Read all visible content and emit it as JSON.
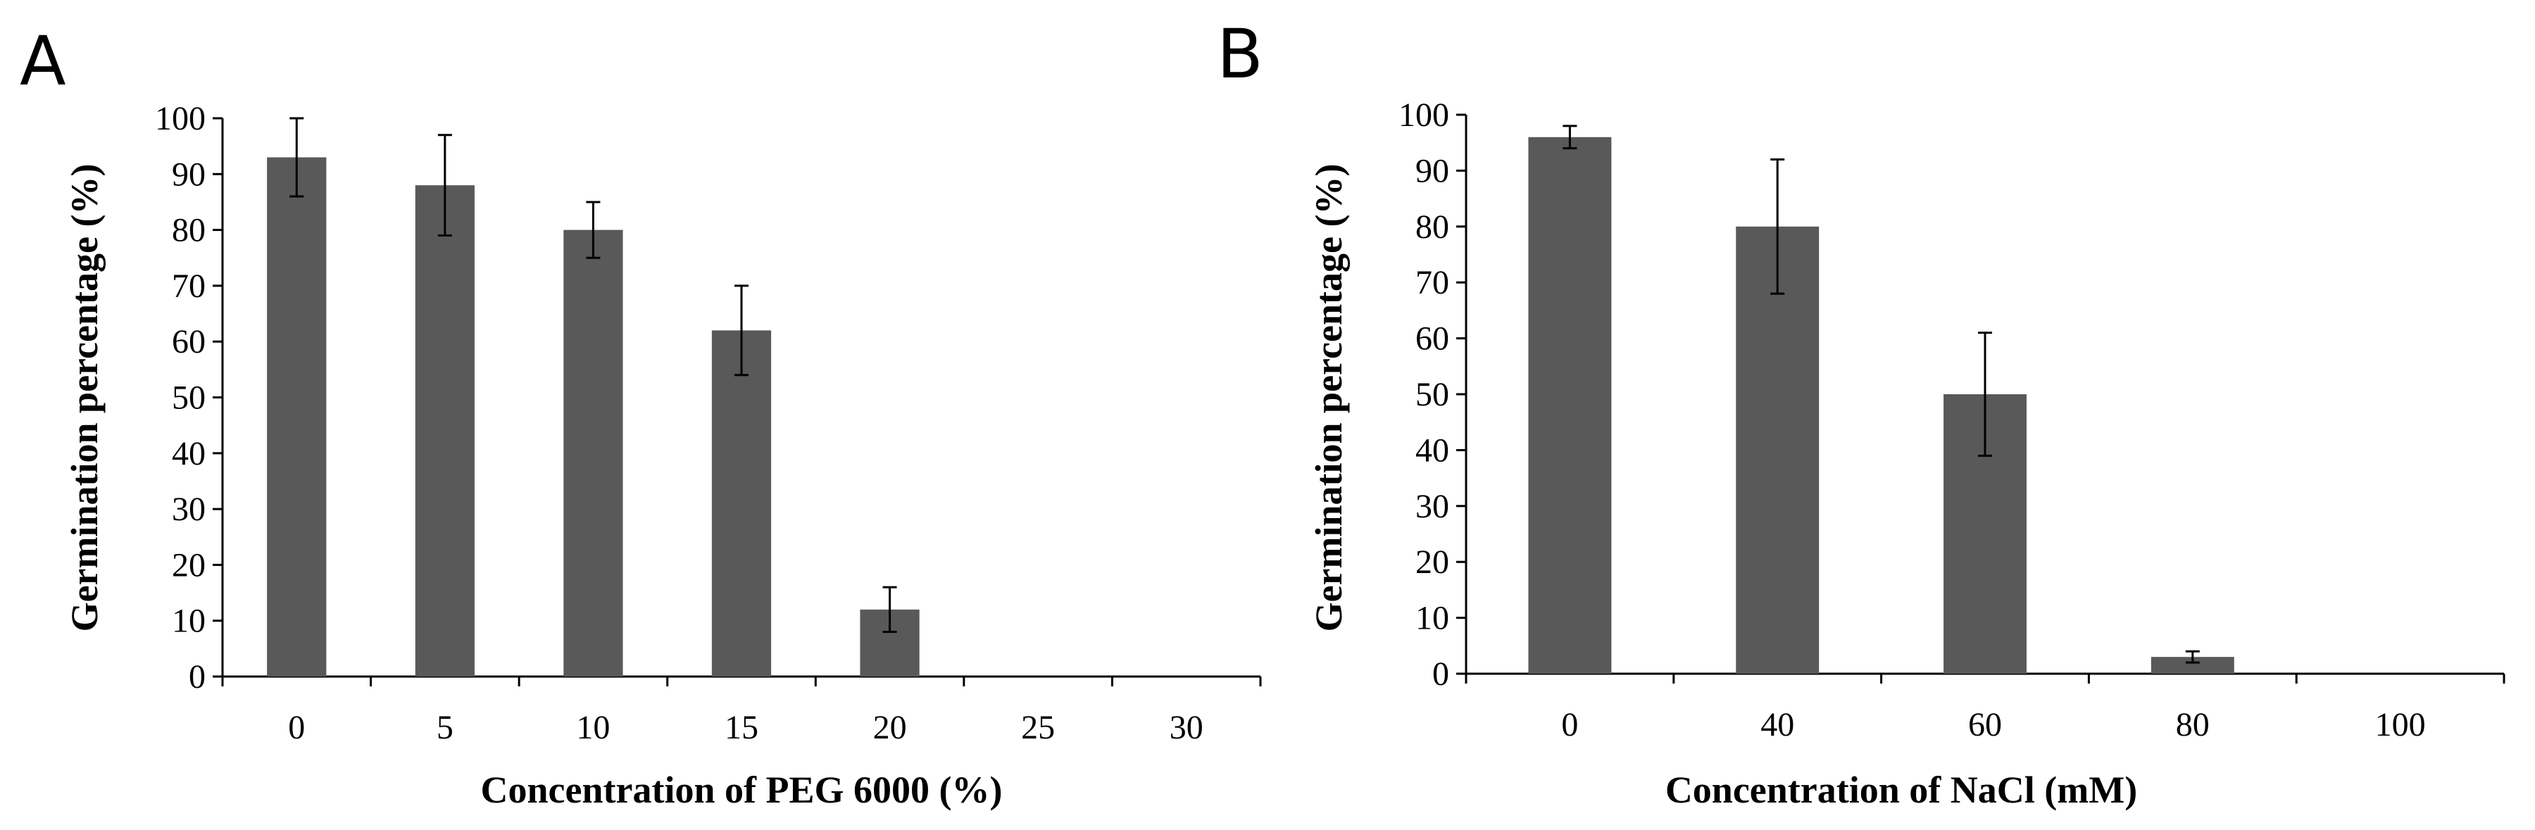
{
  "colors": {
    "bar": "#595959",
    "axis": "#000000",
    "background": "#ffffff"
  },
  "chart_data": [
    {
      "type": "bar",
      "panel": "A",
      "title": "",
      "xlabel": "Concentration of PEG 6000 (%)",
      "ylabel": "Germination percentage (%)",
      "categories": [
        "0",
        "5",
        "10",
        "15",
        "20",
        "25",
        "30"
      ],
      "values": [
        93,
        88,
        80,
        62,
        12,
        0,
        0
      ],
      "errors": [
        7,
        9,
        5,
        8,
        4,
        0,
        0
      ],
      "ylim": [
        0,
        100
      ],
      "yticks": [
        "0",
        "10",
        "20",
        "30",
        "40",
        "50",
        "60",
        "70",
        "80",
        "90",
        "100"
      ],
      "grid": false,
      "legend": "none"
    },
    {
      "type": "bar",
      "panel": "B",
      "title": "",
      "xlabel": "Concentration of NaCl (mM)",
      "ylabel": "Germination percentage (%)",
      "categories": [
        "0",
        "40",
        "60",
        "80",
        "100"
      ],
      "values": [
        96,
        80,
        50,
        3,
        0
      ],
      "errors": [
        2,
        12,
        11,
        1,
        0
      ],
      "ylim": [
        0,
        100
      ],
      "yticks": [
        "0",
        "10",
        "20",
        "30",
        "40",
        "50",
        "60",
        "70",
        "80",
        "90",
        "100"
      ],
      "grid": false,
      "legend": "none"
    }
  ]
}
